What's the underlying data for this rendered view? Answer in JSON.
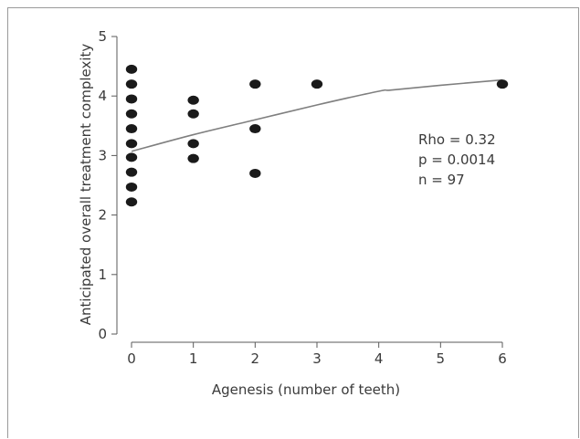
{
  "chart_data": {
    "type": "scatter",
    "xlabel": "Agenesis (number of teeth)",
    "ylabel": "Anticipated overall treatment complexity",
    "xlim": [
      0,
      6
    ],
    "ylim": [
      0,
      5
    ],
    "xticks": [
      "0",
      "1",
      "2",
      "3",
      "4",
      "5",
      "6"
    ],
    "yticks": [
      "0",
      "1",
      "2",
      "3",
      "4",
      "5"
    ],
    "points": [
      {
        "x": 0,
        "y": 4.45
      },
      {
        "x": 0,
        "y": 4.2
      },
      {
        "x": 0,
        "y": 3.95
      },
      {
        "x": 0,
        "y": 3.7
      },
      {
        "x": 0,
        "y": 3.45
      },
      {
        "x": 0,
        "y": 3.2
      },
      {
        "x": 0,
        "y": 2.97
      },
      {
        "x": 0,
        "y": 2.72
      },
      {
        "x": 0,
        "y": 2.47
      },
      {
        "x": 0,
        "y": 2.22
      },
      {
        "x": 1,
        "y": 3.93
      },
      {
        "x": 1,
        "y": 3.7
      },
      {
        "x": 1,
        "y": 3.2
      },
      {
        "x": 1,
        "y": 2.95
      },
      {
        "x": 2,
        "y": 4.2
      },
      {
        "x": 2,
        "y": 3.45
      },
      {
        "x": 2,
        "y": 2.7
      },
      {
        "x": 3,
        "y": 4.2
      },
      {
        "x": 6,
        "y": 4.2
      }
    ],
    "fit_line": {
      "x": [
        0,
        1,
        2,
        3,
        4,
        4.2,
        5,
        6
      ],
      "y": [
        3.07,
        3.35,
        3.6,
        3.85,
        4.08,
        4.1,
        4.18,
        4.27
      ]
    },
    "annotations": [
      "Rho = 0.32",
      "p = 0.0014",
      "n = 97"
    ],
    "colors": {
      "points": "#1a1a1a",
      "line": "#7f7f7f",
      "axis": "#5a5a5a"
    }
  }
}
